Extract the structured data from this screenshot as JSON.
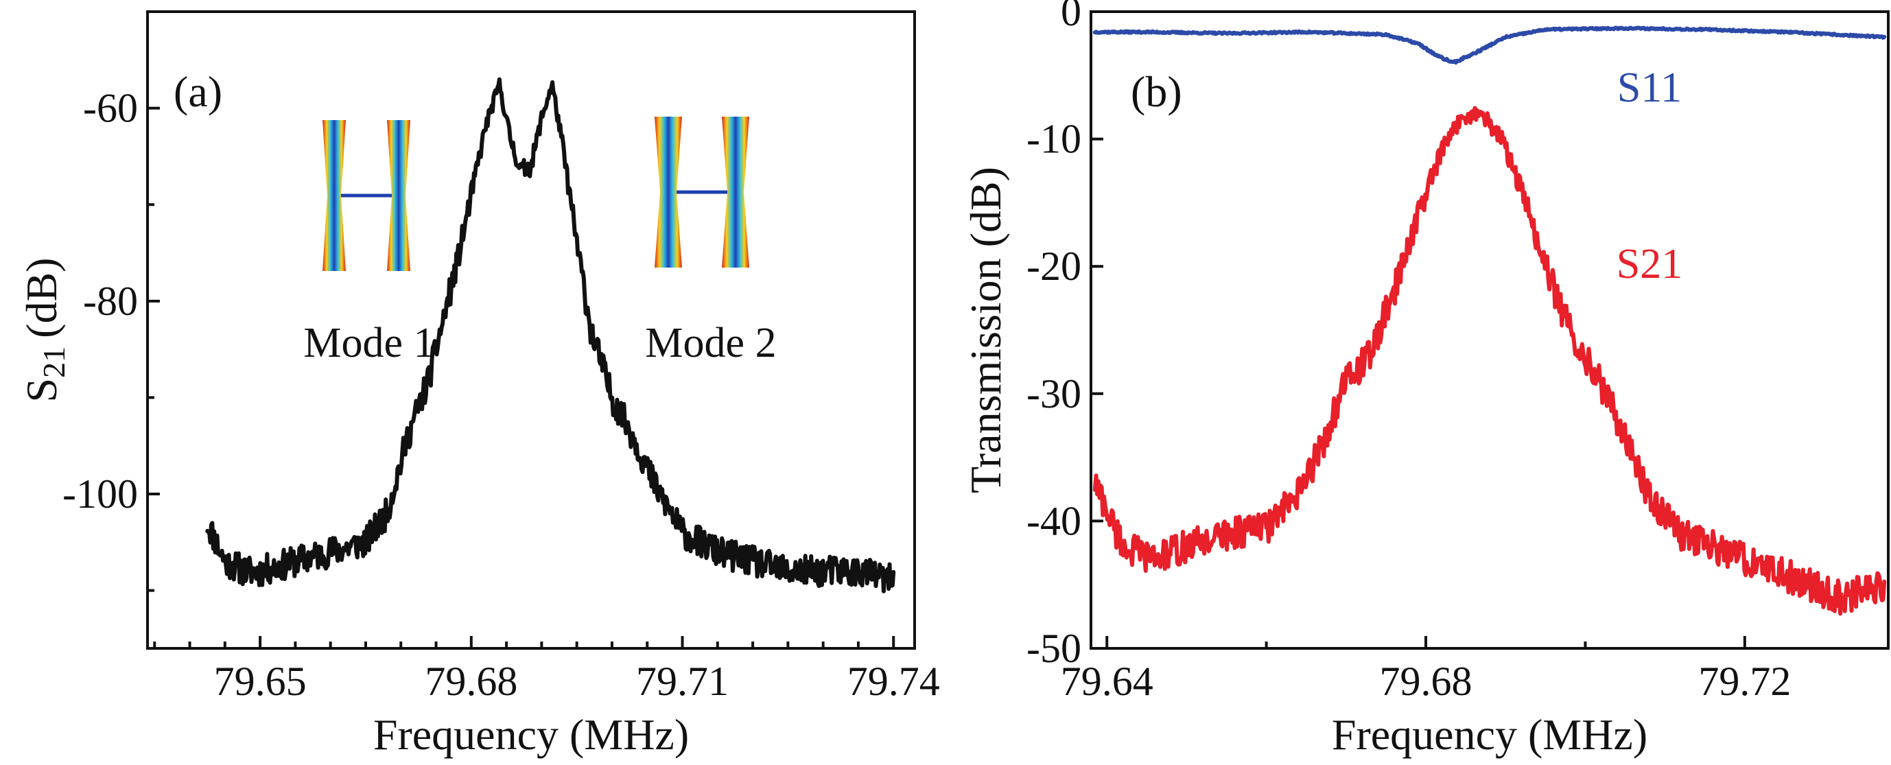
{
  "colors": {
    "panel_a_curve": "#111111",
    "s11": "#2c4aa8",
    "s21": "#e8202a"
  },
  "chart_data": [
    {
      "type": "line",
      "panel_label": "(a)",
      "xlabel": "Frequency (MHz)",
      "ylabel": "S21 (dB)",
      "ylabel_parts": {
        "base": "S",
        "subscript": "21",
        "unit": "(dB)"
      },
      "xlim": [
        79.634,
        79.743
      ],
      "ylim": [
        -116,
        -50
      ],
      "x_ticks": [
        79.65,
        79.68,
        79.71,
        79.74
      ],
      "x_tick_labels": [
        "79.65",
        "79.68",
        "79.71",
        "79.74"
      ],
      "x_minor_ticks": [
        79.635,
        79.64,
        79.645,
        79.655,
        79.66,
        79.665,
        79.67,
        79.675,
        79.685,
        79.69,
        79.695,
        79.7,
        79.705,
        79.715,
        79.72,
        79.725,
        79.73,
        79.735
      ],
      "y_ticks": [
        -60,
        -80,
        -100
      ],
      "y_tick_labels": [
        "-60",
        "-80",
        "-100"
      ],
      "y_minor_ticks": [
        -70,
        -90,
        -110
      ],
      "annotations": [
        "Mode 1",
        "Mode 2"
      ],
      "inset_images": [
        "mode-1-shape",
        "mode-2-shape"
      ],
      "series": [
        {
          "name": "S21",
          "x": [
            79.6425,
            79.645,
            79.648,
            79.65,
            79.655,
            79.66,
            79.665,
            79.668,
            79.671,
            79.674,
            79.676,
            79.678,
            79.68,
            79.682,
            79.684,
            79.6855,
            79.687,
            79.6885,
            79.69,
            79.6915,
            79.693,
            79.695,
            79.697,
            79.7,
            79.703,
            79.706,
            79.71,
            79.715,
            79.72,
            79.725,
            79.73,
            79.735,
            79.74
          ],
          "values": [
            -103,
            -107,
            -108,
            -108,
            -107,
            -106,
            -105,
            -102,
            -94,
            -88,
            -82,
            -76,
            -69,
            -62,
            -57.5,
            -63,
            -66.5,
            -66,
            -61,
            -57.5,
            -64,
            -74,
            -83,
            -90,
            -94,
            -99,
            -104,
            -106,
            -107,
            -108,
            -108,
            -108,
            -109
          ]
        }
      ]
    },
    {
      "type": "line",
      "panel_label": "(b)",
      "xlabel": "Frequency (MHz)",
      "ylabel": "Transmission (dB)",
      "xlim": [
        79.638,
        79.738
      ],
      "ylim": [
        -50,
        0
      ],
      "x_ticks": [
        79.64,
        79.68,
        79.72
      ],
      "x_tick_labels": [
        "79.64",
        "79.68",
        "79.72"
      ],
      "x_minor_ticks": [
        79.66,
        79.7
      ],
      "y_ticks": [
        0,
        -10,
        -20,
        -30,
        -40,
        -50
      ],
      "y_tick_labels": [
        "0",
        "-10",
        "-20",
        "-30",
        "-40",
        "-50"
      ],
      "series": [
        {
          "name": "S11",
          "x": [
            79.6385,
            79.645,
            79.655,
            79.665,
            79.675,
            79.679,
            79.6815,
            79.6835,
            79.686,
            79.69,
            79.695,
            79.705,
            79.715,
            79.725,
            79.7375
          ],
          "values": [
            -1.6,
            -1.6,
            -1.7,
            -1.6,
            -1.8,
            -2.5,
            -3.5,
            -4.0,
            -3.3,
            -2.0,
            -1.4,
            -1.3,
            -1.4,
            -1.6,
            -2.0
          ]
        },
        {
          "name": "S21",
          "x": [
            79.6385,
            79.642,
            79.646,
            79.65,
            79.655,
            79.66,
            79.664,
            79.667,
            79.67,
            79.673,
            79.676,
            79.679,
            79.682,
            79.6845,
            79.687,
            79.6895,
            79.692,
            79.695,
            79.698,
            79.701,
            79.704,
            79.708,
            79.712,
            79.716,
            79.72,
            79.724,
            79.728,
            79.732,
            79.7375
          ],
          "values": [
            -37,
            -42,
            -43,
            -42,
            -41,
            -40.5,
            -38,
            -34,
            -29,
            -27,
            -22,
            -16,
            -11,
            -8.2,
            -8.0,
            -10,
            -14,
            -20,
            -25,
            -28,
            -32,
            -38,
            -41,
            -42,
            -43,
            -44,
            -45,
            -46,
            -45
          ]
        }
      ]
    }
  ]
}
